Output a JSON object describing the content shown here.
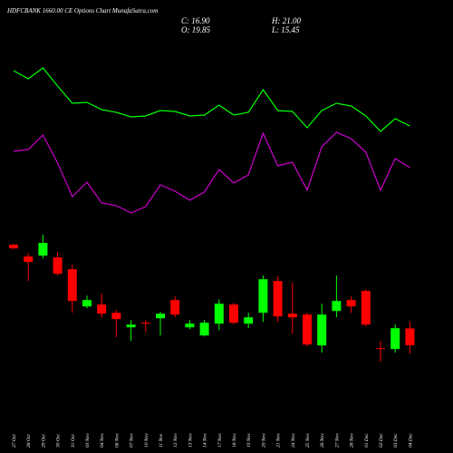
{
  "chart_data": {
    "type": "candlestick",
    "title": "HDFCBANK 1660.00 CE Options Chart MunafaSutra.com",
    "annotations": [
      "C: 16.90",
      "H: 21.00",
      "O: 19.85",
      "L: 15.45"
    ],
    "categories": [
      "27 Oct",
      "28 Oct",
      "29 Oct",
      "30 Oct",
      "31 Oct",
      "03 Nov",
      "04 Nov",
      "06 Nov",
      "07 Nov",
      "10 Nov",
      "11 Nov",
      "12 Nov",
      "13 Nov",
      "14 Nov",
      "17 Nov",
      "18 Nov",
      "19 Nov",
      "20 Nov",
      "21 Nov",
      "24 Nov",
      "25 Nov",
      "26 Nov",
      "27 Nov",
      "28 Nov",
      "01 Dec",
      "02 Dec",
      "03 Dec",
      "04 Dec"
    ],
    "open": [
      34.49,
      32.43,
      32.59,
      32.27,
      30.21,
      23.7,
      24.02,
      22.59,
      20.05,
      20.84,
      21.63,
      24.81,
      20.05,
      18.62,
      20.68,
      24.02,
      20.68,
      22.59,
      28.14,
      22.43,
      22.27,
      16.87,
      22.9,
      24.81,
      26.4,
      16.4,
      16.24,
      19.85
    ],
    "high": [
      34.65,
      33.06,
      36.24,
      33.22,
      31.0,
      25.6,
      25.92,
      23.06,
      21.32,
      21.32,
      22.75,
      25.44,
      21.32,
      21.32,
      24.97,
      24.33,
      22.59,
      29.1,
      28.94,
      27.83,
      22.59,
      24.17,
      29.1,
      25.44,
      26.71,
      17.67,
      20.52,
      21.0
    ],
    "low": [
      33.7,
      28.14,
      32.11,
      29.1,
      22.59,
      23.38,
      21.79,
      18.3,
      17.67,
      19.25,
      18.62,
      21.79,
      19.73,
      18.46,
      19.57,
      20.52,
      19.89,
      21.0,
      21.0,
      18.94,
      16.71,
      15.6,
      21.79,
      22.59,
      20.21,
      14.02,
      15.6,
      15.45
    ],
    "close": [
      33.86,
      31.48,
      34.81,
      29.41,
      24.65,
      24.81,
      22.43,
      21.48,
      20.52,
      20.68,
      22.43,
      22.27,
      20.68,
      20.84,
      24.17,
      20.84,
      21.79,
      28.46,
      21.95,
      21.79,
      17.03,
      22.27,
      24.65,
      23.7,
      20.52,
      16.24,
      19.89,
      16.9
    ],
    "up_color": "#00ff00",
    "down_color": "#ff0000",
    "ylim": [
      12,
      38
    ],
    "series": [
      {
        "color": "#00ff00",
        "axis": "y2",
        "values": [
          222,
          213,
          225,
          205,
          186,
          187,
          179,
          176,
          171,
          172,
          178,
          177,
          172,
          173,
          184,
          173,
          176,
          201,
          178,
          177,
          159,
          178,
          186,
          183,
          172,
          155,
          169,
          161
        ]
      },
      {
        "color": "#cc00cc",
        "axis": "y2",
        "values": [
          133,
          135,
          151,
          120,
          83,
          99,
          76,
          73,
          65,
          72,
          96,
          89,
          79,
          88,
          113,
          98,
          107,
          153,
          117,
          121,
          90,
          138,
          154,
          147,
          132,
          90,
          125,
          115
        ]
      }
    ],
    "y2lim": [
      0,
      300
    ]
  }
}
